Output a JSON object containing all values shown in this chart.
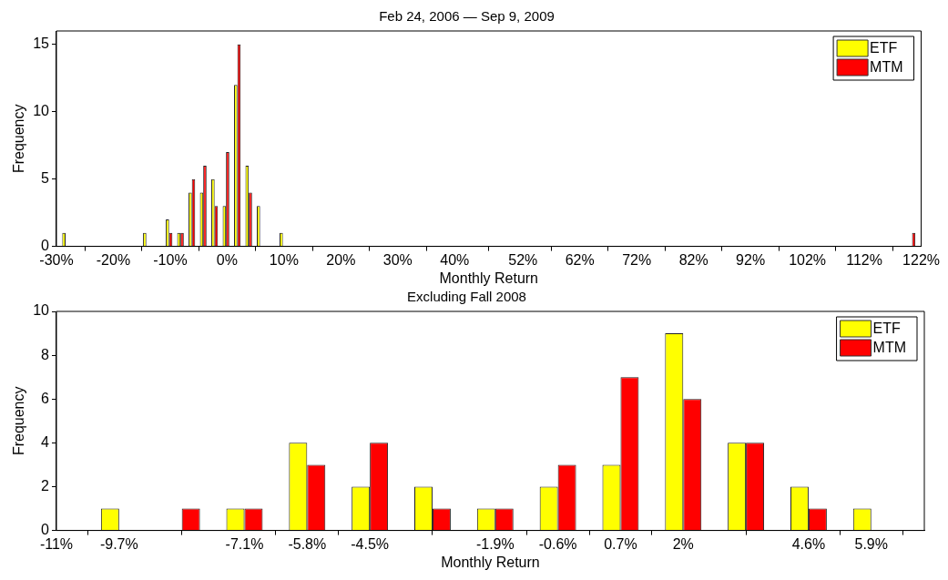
{
  "chart_data": [
    {
      "type": "bar",
      "title": "Feb 24, 2006 — Sep 9, 2009",
      "xlabel": "Monthly Return",
      "ylabel": "Frequency",
      "x": [
        -28.4,
        -14.2,
        -10.2,
        -8.2,
        -6.2,
        -4.2,
        -2.2,
        -0.2,
        1.8,
        3.8,
        5.8,
        9.8,
        120.4
      ],
      "series": [
        {
          "name": "ETF",
          "color": "#ffff00",
          "values": [
            1,
            1,
            2,
            1,
            4,
            4,
            5,
            3,
            12,
            6,
            3,
            1,
            0
          ]
        },
        {
          "name": "MTM",
          "color": "#ff0000",
          "values": [
            0,
            0,
            1,
            1,
            5,
            6,
            3,
            7,
            15,
            4,
            0,
            0,
            1
          ]
        }
      ],
      "xlim": [
        -30,
        122
      ],
      "xticks": [
        {
          "value": -30,
          "label": "-30%"
        },
        {
          "value": -20,
          "label": "-20%"
        },
        {
          "value": -10,
          "label": "-10%"
        },
        {
          "value": 0,
          "label": "0%"
        },
        {
          "value": 10,
          "label": "10%"
        },
        {
          "value": 20,
          "label": "20%"
        },
        {
          "value": 30,
          "label": "30%"
        },
        {
          "value": 40,
          "label": "40%"
        },
        {
          "value": 52,
          "label": "52%"
        },
        {
          "value": 62,
          "label": "62%"
        },
        {
          "value": 72,
          "label": "72%"
        },
        {
          "value": 82,
          "label": "82%"
        },
        {
          "value": 92,
          "label": "92%"
        },
        {
          "value": 102,
          "label": "102%"
        },
        {
          "value": 112,
          "label": "112%"
        },
        {
          "value": 122,
          "label": "122%"
        }
      ],
      "ylim": [
        0,
        16
      ],
      "yticks": [
        0,
        5,
        10,
        15
      ],
      "grid": false,
      "legend": "top right"
    },
    {
      "type": "bar",
      "title": "Excluding Fall 2008",
      "xlabel": "Monthly Return",
      "ylabel": "Frequency",
      "x": [
        -11,
        -9.7,
        -8.4,
        -7.1,
        -5.8,
        -4.5,
        -3.2,
        -1.9,
        -0.6,
        0.7,
        2,
        3.3,
        4.6,
        5.9
      ],
      "series": [
        {
          "name": "ETF",
          "color": "#ffff00",
          "values": [
            0,
            1,
            0,
            1,
            4,
            2,
            2,
            1,
            2,
            3,
            9,
            4,
            2,
            1
          ]
        },
        {
          "name": "MTM",
          "color": "#ff0000",
          "values": [
            0,
            0,
            1,
            1,
            3,
            4,
            1,
            1,
            3,
            7,
            6,
            4,
            1,
            0
          ]
        }
      ],
      "xlim": [
        -11,
        7
      ],
      "xticks": [
        {
          "value": -11,
          "label": "-11%"
        },
        {
          "value": -9.7,
          "label": "-9.7%"
        },
        {
          "value": -7.1,
          "label": "-7.1%"
        },
        {
          "value": -5.8,
          "label": "-5.8%"
        },
        {
          "value": -4.5,
          "label": "-4.5%"
        },
        {
          "value": -1.9,
          "label": "-1.9%"
        },
        {
          "value": -0.6,
          "label": "-0.6%"
        },
        {
          "value": 0.7,
          "label": "0.7%"
        },
        {
          "value": 2,
          "label": "2%"
        },
        {
          "value": 4.6,
          "label": "4.6%"
        },
        {
          "value": 5.9,
          "label": "5.9%"
        }
      ],
      "ylim": [
        0,
        10
      ],
      "yticks": [
        0,
        2,
        4,
        6,
        8,
        10
      ],
      "grid": false,
      "legend": "top right"
    }
  ]
}
